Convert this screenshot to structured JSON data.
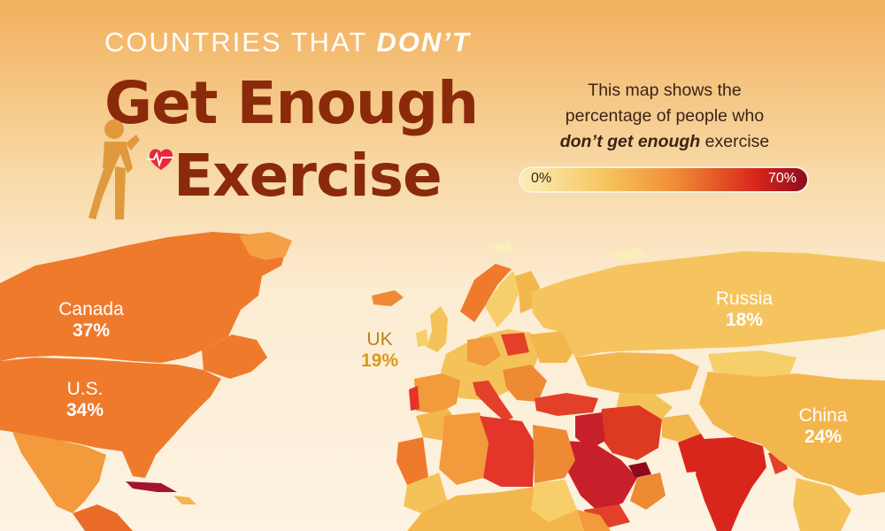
{
  "header": {
    "kicker_pre": "COUNTRIES THAT ",
    "kicker_em": "DON’T",
    "title_line1": "Get Enough",
    "title_line2": "Exercise"
  },
  "description": {
    "line1": "This map shows the",
    "line2": "percentage of people who",
    "line3_em": "don’t get enough",
    "line3_rest": " exercise"
  },
  "legend": {
    "min_label": "0%",
    "max_label": "70%"
  },
  "labels": {
    "canada": {
      "name": "Canada",
      "value": "37%"
    },
    "us": {
      "name": "U.S.",
      "value": "34%"
    },
    "uk": {
      "name": "UK",
      "value": "19%"
    },
    "russia": {
      "name": "Russia",
      "value": "18%"
    },
    "china": {
      "name": "China",
      "value": "24%"
    }
  },
  "colors": {
    "title": "#8b2a0b",
    "scale_low": "#fbeeb8",
    "scale_mid": "#ef8a34",
    "scale_high": "#8e0b1e",
    "heart": "#e8293a",
    "figure": "#e09a3d"
  },
  "icons": [
    "exercising-figure-icon",
    "heart-pulse-icon"
  ]
}
